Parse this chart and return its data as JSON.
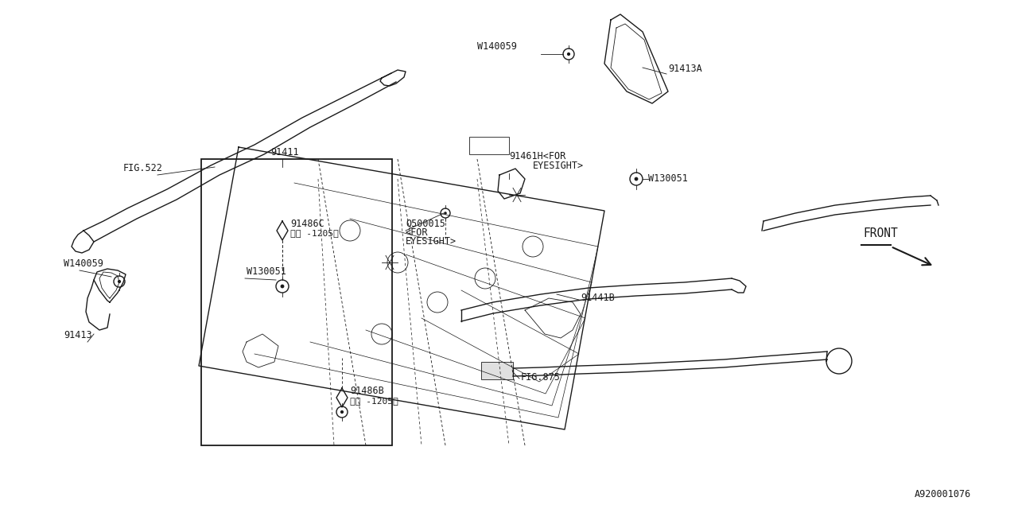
{
  "bg_color": "#ffffff",
  "line_color": "#1a1a1a",
  "diagram_id": "A920001076",
  "fig522_label": "FIG.522",
  "label_91411": "91411",
  "label_91486C": "91486C",
  "label_91486C_sub": "※（ -1205）",
  "label_W130051": "W130051",
  "label_91486B": "91486B",
  "label_91486B_sub": "※（ -1205）",
  "label_W140059_left": "W140059",
  "label_91413": "91413",
  "label_91461H": "91461H<FOR",
  "label_EYESIGHT1": "EYESIGHT>",
  "label_Q500015": "Q500015",
  "label_FOR_EYESIGHT": "<FOR",
  "label_EYESIGHT2": "EYESIGHT>",
  "label_W140059_top": "W140059",
  "label_91413A": "91413A",
  "label_W130051_right": "W130051",
  "label_91441B": "91441B",
  "label_FIG875": "FIG.875",
  "label_FRONT": "FRONT",
  "label_diag_id": "A920001076"
}
